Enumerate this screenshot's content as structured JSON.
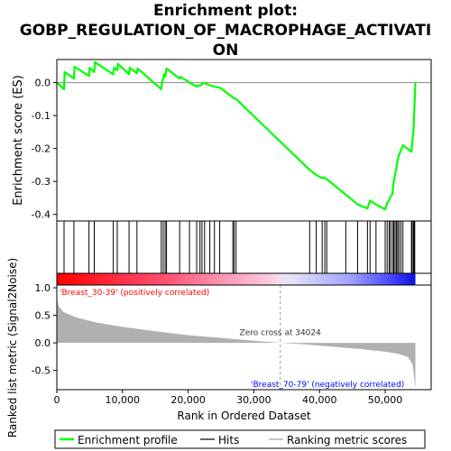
{
  "title_lines": [
    "Enrichment plot:",
    "GOBP_REGULATION_OF_MACROPHAGE_ACTIVATI",
    "ON"
  ],
  "colors": {
    "curve": "#00ff00",
    "hits": "#000000",
    "metric_fill": "#b0b0b0",
    "positive_label": "#ff0000",
    "negative_label": "#0000ff"
  },
  "chart_data": {
    "type": "line",
    "xlabel": "Rank in Ordered Dataset",
    "ylabel_top": "Enrichment score (ES)",
    "ylabel_bottom": "Ranked list metric (Signal2Noise)",
    "xlim": [
      0,
      57000
    ],
    "x_ticks": [
      0,
      10000,
      20000,
      30000,
      40000,
      50000
    ],
    "x_tick_labels": [
      "0",
      "10,000",
      "20,000",
      "30,000",
      "40,000",
      "50,000"
    ],
    "es_ylim": [
      -0.42,
      0.07
    ],
    "es_y_ticks": [
      0.0,
      -0.1,
      -0.2,
      -0.3,
      -0.4
    ],
    "es_y_tick_labels": [
      "0.0",
      "-0.1",
      "-0.2",
      "-0.3",
      "-0.4"
    ],
    "metric_ylim": [
      -0.85,
      1.05
    ],
    "metric_y_ticks": [
      1.0,
      0.5,
      0.0,
      -0.5
    ],
    "metric_y_tick_labels": [
      "1.0",
      "0.5",
      "0.0",
      "-0.5"
    ],
    "positive_label": "'Breast_30-39' (positively correlated)",
    "negative_label": "'Breast_70-79' (negatively correlated)",
    "zero_cross_label": "Zero cross at 34024",
    "zero_cross": 34024,
    "max_rank": 54600,
    "es_points": [
      [
        0,
        0.0
      ],
      [
        1100,
        -0.02
      ],
      [
        1200,
        0.032
      ],
      [
        2600,
        0.012
      ],
      [
        2700,
        0.048
      ],
      [
        4900,
        0.02
      ],
      [
        5000,
        0.045
      ],
      [
        5700,
        0.032
      ],
      [
        5800,
        0.062
      ],
      [
        8600,
        0.025
      ],
      [
        8700,
        0.045
      ],
      [
        9200,
        0.038
      ],
      [
        9300,
        0.057
      ],
      [
        11000,
        0.025
      ],
      [
        11100,
        0.045
      ],
      [
        12200,
        0.028
      ],
      [
        12300,
        0.043
      ],
      [
        15900,
        -0.02
      ],
      [
        16000,
        0.0
      ],
      [
        16200,
        0.01
      ],
      [
        16300,
        0.025
      ],
      [
        16500,
        0.018
      ],
      [
        16700,
        0.043
      ],
      [
        18700,
        0.012
      ],
      [
        18800,
        0.018
      ],
      [
        20200,
        0.0
      ],
      [
        21300,
        -0.012
      ],
      [
        21500,
        -0.008
      ],
      [
        21800,
        -0.01
      ],
      [
        22100,
        -0.005
      ],
      [
        22300,
        0.0
      ],
      [
        22500,
        -0.002
      ],
      [
        23300,
        -0.008
      ],
      [
        24000,
        -0.012
      ],
      [
        24800,
        -0.015
      ],
      [
        26800,
        -0.045
      ],
      [
        27000,
        -0.048
      ],
      [
        27300,
        -0.05
      ],
      [
        38500,
        -0.265
      ],
      [
        39500,
        -0.28
      ],
      [
        40400,
        -0.29
      ],
      [
        40600,
        -0.288
      ],
      [
        40800,
        -0.29
      ],
      [
        41100,
        -0.293
      ],
      [
        44000,
        -0.34
      ],
      [
        45800,
        -0.37
      ],
      [
        47300,
        -0.382
      ],
      [
        47500,
        -0.37
      ],
      [
        47700,
        -0.358
      ],
      [
        48600,
        -0.37
      ],
      [
        50000,
        -0.385
      ],
      [
        50300,
        -0.365
      ],
      [
        50600,
        -0.358
      ],
      [
        50800,
        -0.345
      ],
      [
        51100,
        -0.34
      ],
      [
        51300,
        -0.3
      ],
      [
        51500,
        -0.28
      ],
      [
        51700,
        -0.26
      ],
      [
        51900,
        -0.235
      ],
      [
        52100,
        -0.22
      ],
      [
        52400,
        -0.205
      ],
      [
        52700,
        -0.19
      ],
      [
        54000,
        -0.21
      ],
      [
        54100,
        -0.185
      ],
      [
        54300,
        -0.15
      ],
      [
        54400,
        -0.1
      ],
      [
        54500,
        -0.05
      ],
      [
        54600,
        0.0
      ]
    ],
    "hit_ranks": [
      1100,
      2600,
      4900,
      5700,
      8600,
      9200,
      11000,
      12200,
      15900,
      16200,
      16500,
      16700,
      18700,
      20200,
      21300,
      21800,
      22100,
      22500,
      23300,
      24000,
      24800,
      26800,
      27000,
      27300,
      38500,
      39500,
      40400,
      40800,
      41100,
      44000,
      45800,
      47300,
      47700,
      48600,
      50000,
      50300,
      50600,
      50800,
      51100,
      51300,
      51500,
      51700,
      51900,
      52100,
      52400,
      52700,
      54000,
      54100,
      54300,
      54400,
      54500
    ],
    "metric_profile": [
      [
        0,
        0.82
      ],
      [
        300,
        0.66
      ],
      [
        1000,
        0.56
      ],
      [
        3000,
        0.46
      ],
      [
        6000,
        0.37
      ],
      [
        10000,
        0.29
      ],
      [
        15000,
        0.21
      ],
      [
        20000,
        0.14
      ],
      [
        25000,
        0.09
      ],
      [
        30000,
        0.04
      ],
      [
        34024,
        0.0
      ],
      [
        38000,
        -0.03
      ],
      [
        42000,
        -0.07
      ],
      [
        46000,
        -0.11
      ],
      [
        50000,
        -0.16
      ],
      [
        52000,
        -0.2
      ],
      [
        53500,
        -0.26
      ],
      [
        54200,
        -0.4
      ],
      [
        54600,
        -0.83
      ]
    ],
    "legend": [
      {
        "label": "Enrichment profile",
        "kind": "profile"
      },
      {
        "label": "Hits",
        "kind": "hits"
      },
      {
        "label": "Ranking metric scores",
        "kind": "metric"
      }
    ]
  }
}
